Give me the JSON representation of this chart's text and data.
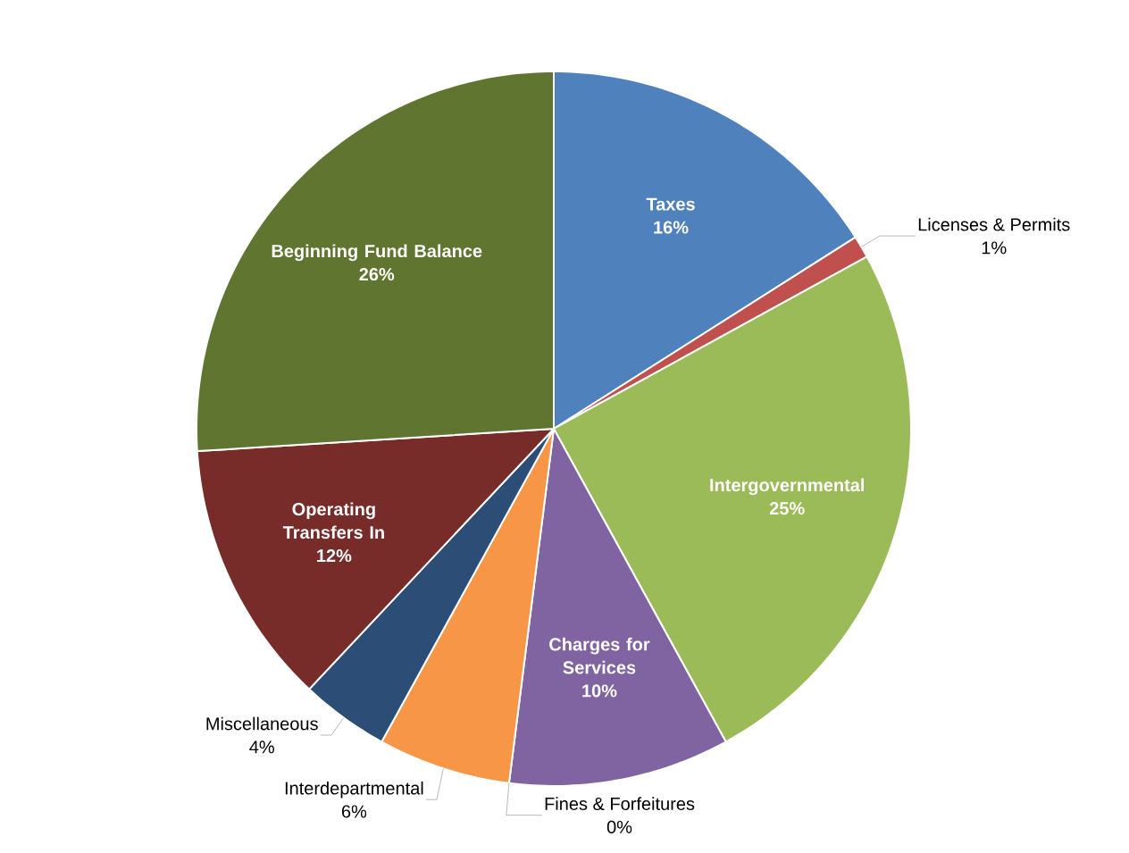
{
  "chart_data": {
    "type": "pie",
    "categories": [
      "Taxes",
      "Licenses & Permits",
      "Intergovernmental",
      "Charges for Services",
      "Fines & Forfeitures",
      "Interdepartmental",
      "Miscellaneous",
      "Operating Transfers In",
      "Beginning Fund Balance"
    ],
    "values": [
      16,
      1,
      25,
      10,
      0,
      6,
      4,
      12,
      26
    ],
    "value_labels": [
      "16%",
      "1%",
      "25%",
      "10%",
      "0%",
      "6%",
      "4%",
      "12%",
      "26%"
    ],
    "colors": [
      "#4f81bd",
      "#c0504d",
      "#9bbb59",
      "#8064a2",
      "#4bacc6",
      "#f79646",
      "#2c4d75",
      "#772c2a",
      "#5f7530"
    ]
  }
}
